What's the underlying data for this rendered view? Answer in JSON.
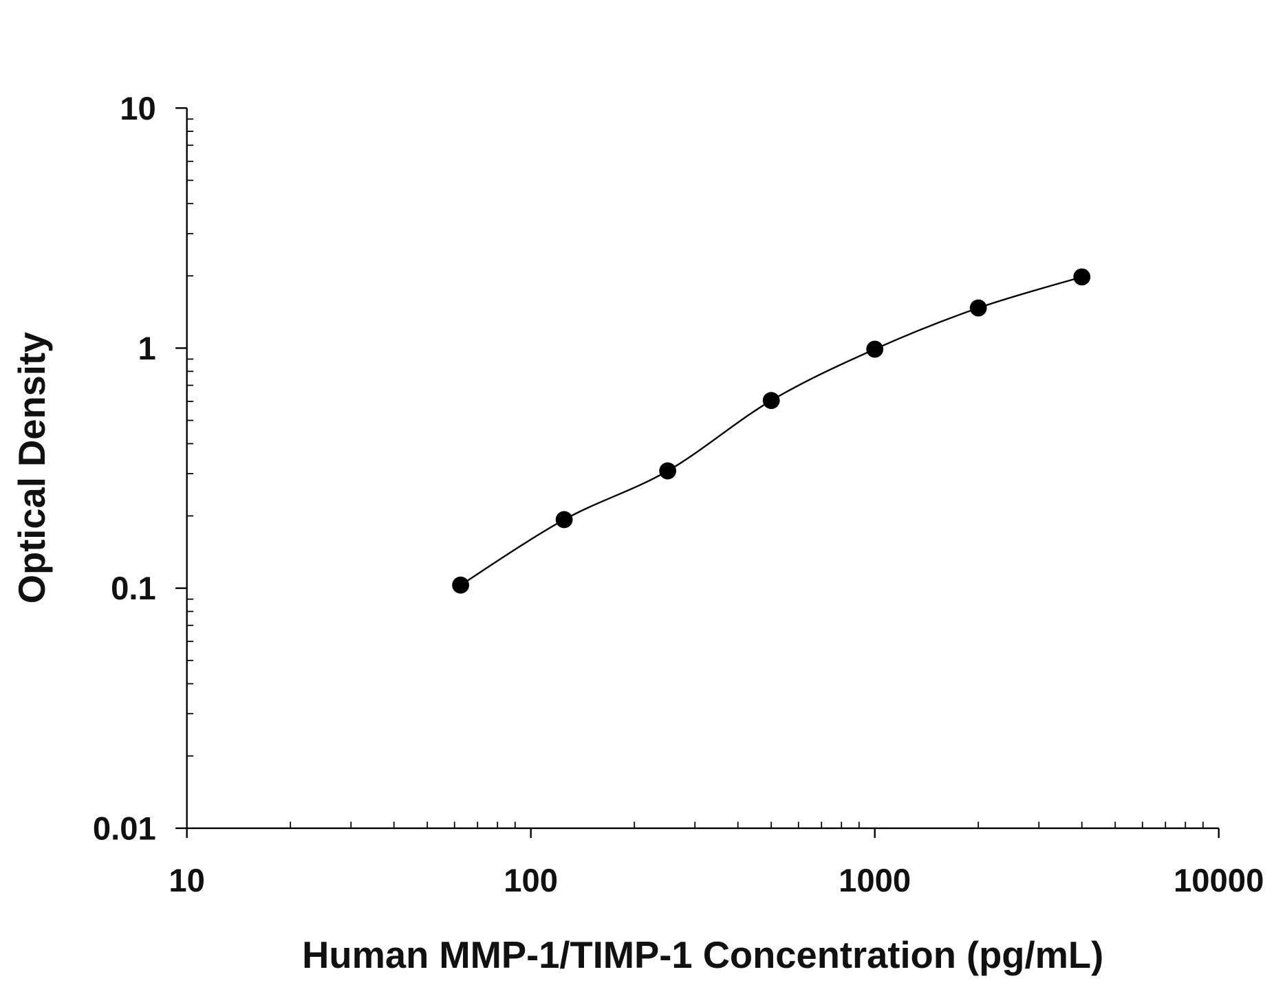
{
  "chart_data": {
    "type": "scatter",
    "title": "",
    "xlabel": "Human MMP-1/TIMP-1 Concentration (pg/mL)",
    "ylabel": "Optical Density",
    "xscale": "log",
    "yscale": "log",
    "xlim": [
      10,
      10000
    ],
    "ylim": [
      0.01,
      10
    ],
    "xticks": [
      10,
      100,
      1000,
      10000
    ],
    "xtick_labels": [
      "10",
      "100",
      "1000",
      "10000"
    ],
    "yticks": [
      0.01,
      0.1,
      1,
      10
    ],
    "ytick_labels": [
      "0.01",
      "0.1",
      "1",
      "10"
    ],
    "grid": false,
    "fit_curve": true,
    "marker_color": "#000000",
    "series": [
      {
        "x": [
          62.5,
          125,
          250,
          500,
          1000,
          2000,
          4000
        ],
        "y": [
          0.103,
          0.193,
          0.308,
          0.605,
          0.99,
          1.47,
          1.98
        ]
      }
    ]
  }
}
